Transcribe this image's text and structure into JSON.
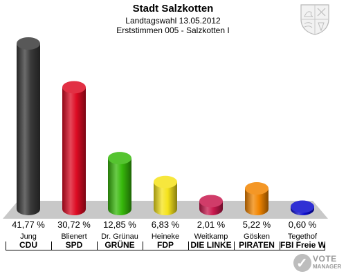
{
  "header": {
    "title": "Stadt Salzkotten",
    "subtitle": "Landtagswahl 13.05.2012",
    "subtitle2": "Erststimmen 005 - Salzkotten I"
  },
  "logo": {
    "line1": "VOTE",
    "line2": "MANAGER"
  },
  "chart_data": {
    "type": "bar",
    "style": "3d-cylinder",
    "title": "Stadt Salzkotten",
    "candidates": [
      "Jung",
      "Blienert",
      "Dr. Grünau",
      "Heineke",
      "Weitkamp",
      "Gösken",
      "Tegethof"
    ],
    "categories": [
      "CDU",
      "SPD",
      "GRÜNE",
      "FDP",
      "DIE LINKE",
      "PIRATEN",
      "FBI Freie Wähler"
    ],
    "values": [
      41.77,
      30.72,
      12.85,
      6.83,
      2.01,
      5.22,
      0.6
    ],
    "labels": [
      "41,77 %",
      "30,72 %",
      "12,85 %",
      "6,83 %",
      "2,01 %",
      "5,22 %",
      "0,60 %"
    ],
    "colors": [
      "#3a3a3a",
      "#dd0b23",
      "#37b90b",
      "#f5e31b",
      "#c8194e",
      "#f28500",
      "#0c0ccc"
    ],
    "ylim": [
      0,
      41.77
    ],
    "grid": false
  }
}
